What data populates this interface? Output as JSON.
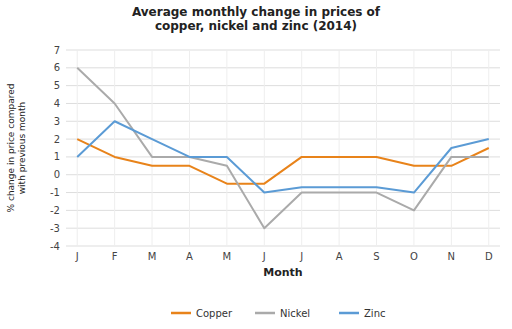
{
  "chart_data": {
    "type": "line",
    "title": "Average monthly change in prices of\ncopper, nickel and zinc (2014)",
    "x_label": "Month",
    "y_label": "% change in price compared\nwith previous month",
    "categories": [
      "J",
      "F",
      "M",
      "A",
      "M",
      "J",
      "J",
      "A",
      "S",
      "O",
      "N",
      "D"
    ],
    "series": [
      {
        "name": "Copper",
        "color": "#E8831A",
        "values": [
          2,
          1,
          0.5,
          0.5,
          -0.5,
          -0.5,
          1,
          1,
          1,
          0.5,
          0.5,
          1.5
        ]
      },
      {
        "name": "Nickel",
        "color": "#AAAAAA",
        "values": [
          6,
          4,
          1,
          1,
          0.5,
          -3,
          -1,
          -1,
          -1,
          -2,
          1,
          1
        ]
      },
      {
        "name": "Zinc",
        "color": "#5B9BD5",
        "values": [
          1,
          3,
          2,
          1,
          1,
          -1,
          -0.7,
          -0.7,
          -0.7,
          -1,
          1.5,
          2
        ]
      }
    ],
    "ylim": [
      -4,
      7
    ],
    "yticks": [
      -4,
      -3,
      -2,
      -1,
      0,
      1,
      2,
      3,
      4,
      5,
      6,
      7
    ],
    "grid": true,
    "legend": "bottom"
  }
}
